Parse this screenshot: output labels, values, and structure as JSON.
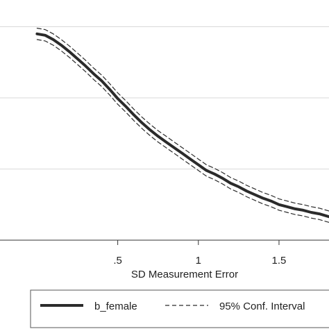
{
  "chart_data": {
    "type": "line",
    "xlabel": "SD Measurement Error",
    "ylabel": "",
    "title": "",
    "xlim": [
      -0.23,
      1.81
    ],
    "ylim": [
      0,
      3.2
    ],
    "x_ticks": [
      {
        "value": 0.5,
        "label": ".5"
      },
      {
        "value": 1,
        "label": "1"
      },
      {
        "value": 1.5,
        "label": "1.5"
      }
    ],
    "y_gridlines": [
      0,
      1,
      2,
      3
    ],
    "grid": true,
    "legend": {
      "position": "bottom",
      "entries": [
        {
          "label": "b_female",
          "style": "solid"
        },
        {
          "label": "95% Conf. Interval",
          "style": "dashed"
        }
      ]
    },
    "series": [
      {
        "name": "b_female",
        "style": "solid",
        "color": "#2b2b2b",
        "x": [
          0,
          0.05,
          0.1,
          0.15,
          0.2,
          0.25,
          0.3,
          0.35,
          0.4,
          0.45,
          0.5,
          0.55,
          0.6,
          0.65,
          0.7,
          0.75,
          0.8,
          0.85,
          0.9,
          0.95,
          1.0,
          1.05,
          1.1,
          1.15,
          1.2,
          1.25,
          1.3,
          1.35,
          1.4,
          1.45,
          1.5,
          1.55,
          1.6,
          1.65,
          1.7,
          1.75,
          1.81
        ],
        "y": [
          2.9,
          2.88,
          2.82,
          2.74,
          2.65,
          2.55,
          2.45,
          2.34,
          2.24,
          2.12,
          1.99,
          1.88,
          1.76,
          1.65,
          1.55,
          1.46,
          1.38,
          1.3,
          1.22,
          1.14,
          1.06,
          0.98,
          0.93,
          0.87,
          0.8,
          0.75,
          0.69,
          0.64,
          0.59,
          0.55,
          0.5,
          0.47,
          0.44,
          0.42,
          0.39,
          0.37,
          0.33
        ]
      },
      {
        "name": "95% Conf. Interval",
        "style": "dashed",
        "color": "#2b2b2b",
        "x": [
          0,
          0.05,
          0.1,
          0.15,
          0.2,
          0.25,
          0.3,
          0.35,
          0.4,
          0.45,
          0.5,
          0.55,
          0.6,
          0.65,
          0.7,
          0.75,
          0.8,
          0.85,
          0.9,
          0.95,
          1.0,
          1.05,
          1.1,
          1.15,
          1.2,
          1.25,
          1.3,
          1.35,
          1.4,
          1.45,
          1.5,
          1.55,
          1.6,
          1.65,
          1.7,
          1.75,
          1.81
        ],
        "y": [
          2.98,
          2.96,
          2.9,
          2.82,
          2.73,
          2.63,
          2.53,
          2.42,
          2.32,
          2.2,
          2.07,
          1.96,
          1.84,
          1.73,
          1.63,
          1.54,
          1.46,
          1.38,
          1.3,
          1.22,
          1.14,
          1.06,
          1.01,
          0.95,
          0.88,
          0.83,
          0.77,
          0.72,
          0.67,
          0.63,
          0.58,
          0.55,
          0.52,
          0.5,
          0.47,
          0.45,
          0.41
        ]
      },
      {
        "name": "95% Conf. Interval",
        "style": "dashed",
        "color": "#2b2b2b",
        "x": [
          0,
          0.05,
          0.1,
          0.15,
          0.2,
          0.25,
          0.3,
          0.35,
          0.4,
          0.45,
          0.5,
          0.55,
          0.6,
          0.65,
          0.7,
          0.75,
          0.8,
          0.85,
          0.9,
          0.95,
          1.0,
          1.05,
          1.1,
          1.15,
          1.2,
          1.25,
          1.3,
          1.35,
          1.4,
          1.45,
          1.5,
          1.55,
          1.6,
          1.65,
          1.7,
          1.75,
          1.81
        ],
        "y": [
          2.82,
          2.8,
          2.74,
          2.66,
          2.57,
          2.47,
          2.37,
          2.26,
          2.16,
          2.04,
          1.91,
          1.8,
          1.68,
          1.57,
          1.47,
          1.38,
          1.3,
          1.22,
          1.14,
          1.06,
          0.98,
          0.9,
          0.85,
          0.79,
          0.72,
          0.67,
          0.61,
          0.56,
          0.51,
          0.47,
          0.42,
          0.39,
          0.36,
          0.34,
          0.31,
          0.29,
          0.25
        ]
      }
    ]
  }
}
